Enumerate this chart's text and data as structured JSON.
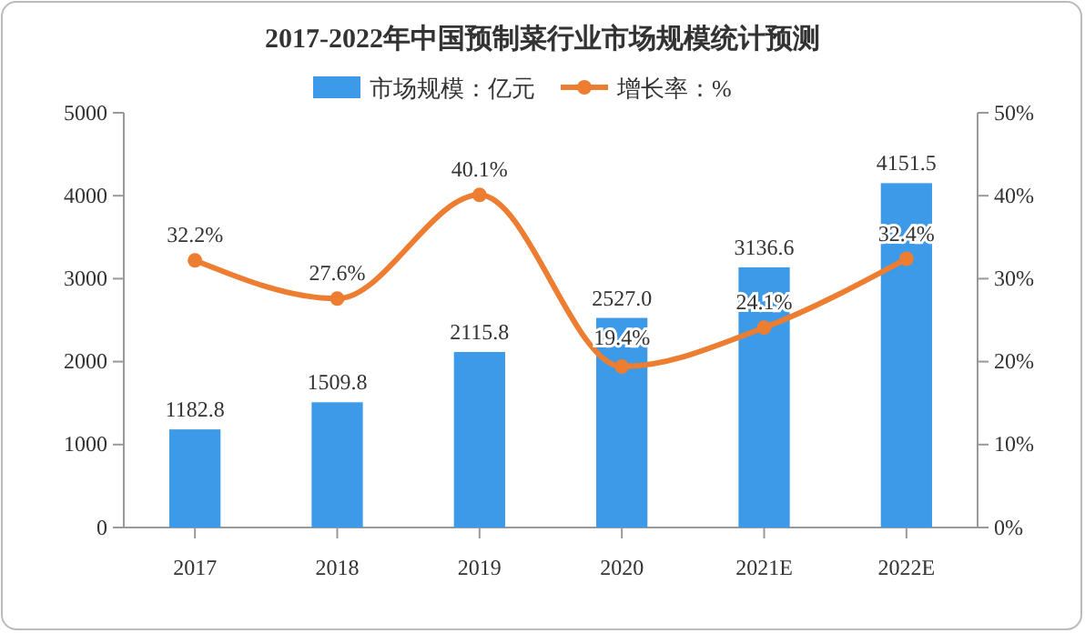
{
  "chart_data": {
    "type": "bar",
    "title": "2017-2022年中国预制菜行业市场规模统计预测",
    "categories": [
      "2017",
      "2018",
      "2019",
      "2020",
      "2021E",
      "2022E"
    ],
    "series": [
      {
        "name": "市场规模：亿元",
        "color": "#3d9ae8",
        "values": [
          1182.8,
          1509.8,
          2115.8,
          2527.0,
          3136.6,
          4151.5
        ],
        "value_labels": [
          "1182.8",
          "1509.8",
          "2115.8",
          "2527.0",
          "3136.6",
          "4151.5"
        ]
      },
      {
        "name": "增长率：%",
        "type": "line",
        "axis": "y2",
        "color": "#ed7d31",
        "values": [
          32.2,
          27.6,
          40.1,
          19.4,
          24.1,
          32.4
        ],
        "value_labels": [
          "32.2%",
          "27.6%",
          "40.1%",
          "19.4%",
          "24.1%",
          "32.4%"
        ]
      }
    ],
    "ylim": [
      0,
      5000
    ],
    "yticks": [
      0,
      1000,
      2000,
      3000,
      4000,
      5000
    ],
    "y2lim": [
      0,
      50
    ],
    "y2ticks": [
      {
        "value": 0,
        "label": "0%"
      },
      {
        "value": 10,
        "label": "10%"
      },
      {
        "value": 20,
        "label": "20%"
      },
      {
        "value": 30,
        "label": "30%"
      },
      {
        "value": 40,
        "label": "40%"
      },
      {
        "value": 50,
        "label": "50%"
      }
    ],
    "legend": "top",
    "marker": "circle",
    "grid": false
  }
}
